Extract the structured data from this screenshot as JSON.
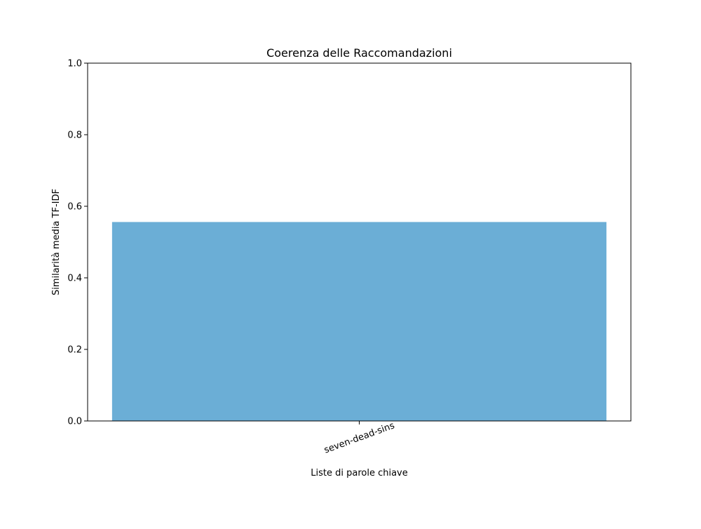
{
  "chart_data": {
    "type": "bar",
    "title": "Coerenza delle Raccomandazioni",
    "xlabel": "Liste di parole chiave",
    "ylabel": "Similarità media TF-IDF",
    "categories": [
      "seven-dead-sins"
    ],
    "values": [
      0.556
    ],
    "ylim": [
      0.0,
      1.0
    ],
    "yticks": [
      0.0,
      0.2,
      0.4,
      0.6,
      0.8,
      1.0
    ],
    "ytick_labels": [
      "0.0",
      "0.2",
      "0.4",
      "0.6",
      "0.8",
      "1.0"
    ],
    "bar_color": "#6baed6",
    "grid": false,
    "xtick_rotation_deg": -20
  }
}
